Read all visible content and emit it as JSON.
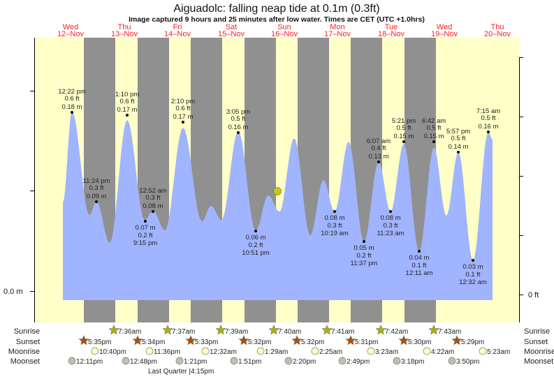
{
  "title": "Aiguadolc: falling  neap tide at 0.1m (0.3ft)",
  "subtitle": "Image captured 9 hours and 25 minutes after low water. Times are CET (UTC +1.0hrs)",
  "colors": {
    "day_bg": "#ffffc8",
    "night": "#909090",
    "water": "#a0b4ff",
    "day_label": "#ff2020",
    "sunrise": "#b0b000",
    "sunset": "#b05000",
    "moonrise": "#ffffc0",
    "moonset": "#c0c0b0",
    "current_marker": "#c8c820"
  },
  "axis": {
    "left_label": "0.0 m",
    "right_label": "0 ft"
  },
  "days": [
    {
      "dow": "Wed",
      "date": "12–Nov"
    },
    {
      "dow": "Thu",
      "date": "13–Nov"
    },
    {
      "dow": "Fri",
      "date": "14–Nov"
    },
    {
      "dow": "Sat",
      "date": "15–Nov"
    },
    {
      "dow": "Sun",
      "date": "16–Nov"
    },
    {
      "dow": "Mon",
      "date": "17–Nov"
    },
    {
      "dow": "Tue",
      "date": "18–Nov"
    },
    {
      "dow": "Wed",
      "date": "19–Nov"
    },
    {
      "dow": "Thu",
      "date": "20–Nov"
    }
  ],
  "chart_data": {
    "type": "area",
    "title": "Aiguadolc: falling  neap tide at 0.1m (0.3ft)",
    "extremes": [
      {
        "type": "high",
        "time": "12:22 pm",
        "ft": "0.6 ft",
        "m": "0.18 m",
        "value_m": 0.18
      },
      {
        "type": "high",
        "time": "11:24 pm",
        "ft": "0.3 ft",
        "m": "0.09 m",
        "value_m": 0.09
      },
      {
        "type": "high",
        "time": "1:10 pm",
        "ft": "0.6 ft",
        "m": "0.17 m",
        "value_m": 0.17
      },
      {
        "type": "low",
        "time": "9:15 pm",
        "ft": "0.2 ft",
        "m": "0.07 m",
        "value_m": 0.07
      },
      {
        "type": "high",
        "time": "12:52 am",
        "ft": "0.3 ft",
        "m": "0.08 m",
        "value_m": 0.08
      },
      {
        "type": "high",
        "time": "2:10 pm",
        "ft": "0.6 ft",
        "m": "0.17 m",
        "value_m": 0.17
      },
      {
        "type": "high",
        "time": "3:05 pm",
        "ft": "0.5 ft",
        "m": "0.16 m",
        "value_m": 0.16
      },
      {
        "type": "low",
        "time": "10:51 pm",
        "ft": "0.2 ft",
        "m": "0.06 m",
        "value_m": 0.06
      },
      {
        "type": "low",
        "time": "10:19 am",
        "ft": "0.3 ft",
        "m": "0.08 m",
        "value_m": 0.08
      },
      {
        "type": "low",
        "time": "11:37 pm",
        "ft": "0.2 ft",
        "m": "0.05 m",
        "value_m": 0.05
      },
      {
        "type": "high",
        "time": "6:07 am",
        "ft": "0.4 ft",
        "m": "0.13 m",
        "value_m": 0.13
      },
      {
        "type": "low",
        "time": "11:23 am",
        "ft": "0.3 ft",
        "m": "0.08 m",
        "value_m": 0.08
      },
      {
        "type": "high",
        "time": "5:21 pm",
        "ft": "0.5 ft",
        "m": "0.15 m",
        "value_m": 0.15
      },
      {
        "type": "low",
        "time": "12:11 am",
        "ft": "0.1 ft",
        "m": "0.04 m",
        "value_m": 0.04
      },
      {
        "type": "high",
        "time": "6:42 am",
        "ft": "0.5 ft",
        "m": "0.15 m",
        "value_m": 0.15
      },
      {
        "type": "high",
        "time": "5:57 pm",
        "ft": "0.5 ft",
        "m": "0.14 m",
        "value_m": 0.14
      },
      {
        "type": "low",
        "time": "12:32 am",
        "ft": "0.1 ft",
        "m": "0.03 m",
        "value_m": 0.03
      },
      {
        "type": "high",
        "time": "7:15 am",
        "ft": "0.5 ft",
        "m": "0.16 m",
        "value_m": 0.16
      }
    ],
    "current_level_m": 0.1
  },
  "rows": {
    "sunrise": {
      "label": "Sunrise",
      "times": [
        "7:36am",
        "7:37am",
        "7:39am",
        "7:40am",
        "7:41am",
        "7:42am",
        "7:43am"
      ]
    },
    "sunset": {
      "label": "Sunset",
      "times": [
        "5:35pm",
        "5:34pm",
        "5:33pm",
        "5:32pm",
        "5:32pm",
        "5:31pm",
        "5:30pm",
        "5:29pm"
      ]
    },
    "moonrise": {
      "label": "Moonrise",
      "times": [
        "10:40pm",
        "11:36pm",
        "12:32am",
        "1:29am",
        "2:25am",
        "3:23am",
        "4:22am",
        "5:23am"
      ]
    },
    "moonset": {
      "label": "Moonset",
      "times": [
        "12:11pm",
        "12:48pm",
        "1:21pm",
        "1:51pm",
        "2:20pm",
        "2:49pm",
        "3:18pm",
        "3:50pm"
      ]
    }
  },
  "moon_phase": "Last Quarter |4:15pm"
}
